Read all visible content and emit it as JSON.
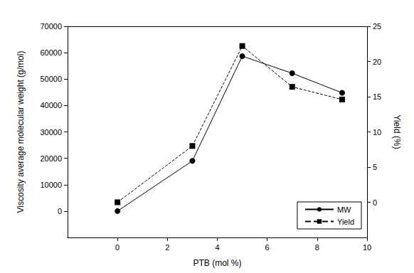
{
  "chart_data": {
    "type": "line",
    "x_label": "PTB (mol %)",
    "y_label": "Viscosity average molecular weight (g/mol)",
    "y2_label": "Yield (%)",
    "xlim": [
      -2,
      10
    ],
    "xticks": [
      0,
      2,
      4,
      6,
      8,
      10
    ],
    "ylim": [
      -10000,
      70000
    ],
    "yticks": [
      0,
      10000,
      20000,
      30000,
      40000,
      50000,
      60000,
      70000
    ],
    "y2lim": [
      -5,
      25
    ],
    "y2ticks": [
      0,
      5,
      10,
      15,
      20,
      25
    ],
    "grid": false,
    "legend": "lower right",
    "series": [
      {
        "name": "MW",
        "color": "#000000",
        "marker": "circle",
        "line_style": "solid",
        "x": [
          0,
          3,
          5,
          7,
          9
        ],
        "values": [
          0,
          19000,
          58700,
          52200,
          44800
        ]
      },
      {
        "name": "Yield",
        "color": "#000000",
        "marker": "square",
        "line_style": "dashed",
        "axis": "y2",
        "x": [
          0,
          3,
          5,
          7,
          9
        ],
        "values": [
          0,
          8,
          22.2,
          16.4,
          14.6
        ]
      }
    ]
  }
}
